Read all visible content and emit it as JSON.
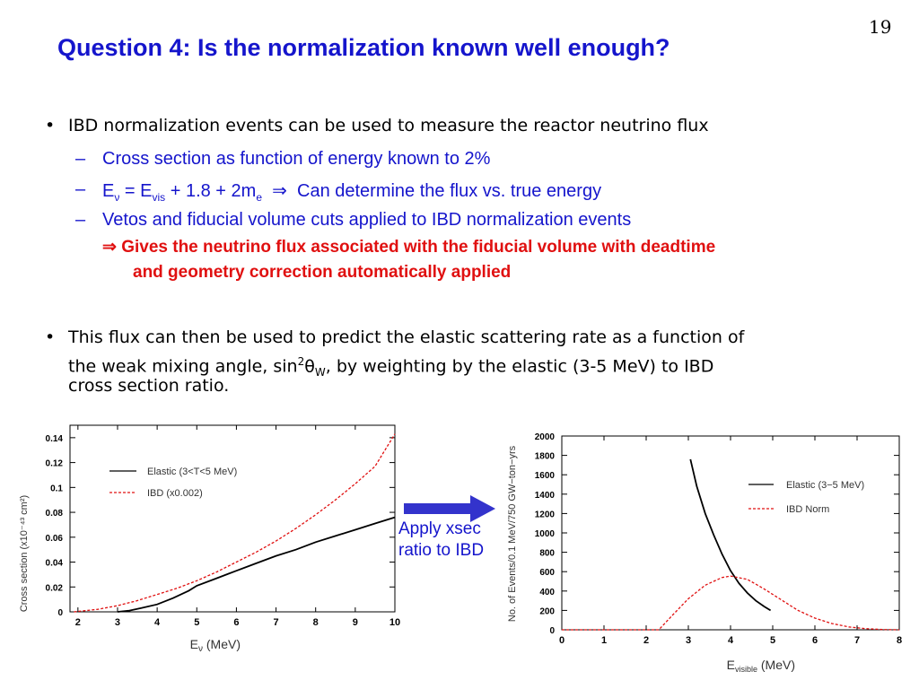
{
  "slide": {
    "number": "19",
    "title": "Question 4:  Is the normalization known well enough?"
  },
  "bullets": {
    "b1": {
      "bullet": "•",
      "text": "IBD normalization events can be used to measure the reactor neutrino flux",
      "subs": [
        {
          "dash": "–",
          "text": "Cross section as function of energy known to 2%"
        },
        {
          "dash": "–",
          "e": "E",
          "nu": "ν",
          "eq": " = E",
          "vis": "vis",
          "rest": " + 1.8 + 2m",
          "me": "e",
          "arrow": "  ⇒  ",
          "tail": "Can determine the flux vs. true energy"
        },
        {
          "dash": "–",
          "text": "Vetos and fiducial volume cuts applied to IBD normalization events"
        }
      ],
      "implication_arrow": "⇒",
      "implication_line1": " Gives the neutrino flux associated with the fiducial volume with deadtime",
      "implication_line2": "and geometry correction automatically applied"
    },
    "b2": {
      "bullet": "•",
      "line1": "This flux can then be used to predict the elastic scattering rate as a function of",
      "line2a": "the weak mixing angle, sin",
      "sup2": "2",
      "theta": "θ",
      "subW": "W",
      "line2b": ", by weighting by the elastic (3-5 MeV) to IBD",
      "line3": "cross section ratio."
    }
  },
  "arrow_note": {
    "line1": "Apply xsec",
    "line2": "ratio to IBD"
  },
  "colors": {
    "blue": "#1515cc",
    "red": "#e01010",
    "arrow": "#3333cc"
  },
  "chart_data": [
    {
      "type": "line",
      "ylabel": "Cross section (x10⁻⁴³ cm²)",
      "xlabel_main": "E",
      "xlabel_sub": "ν",
      "xlabel_unit": " (MeV)",
      "xlim": [
        1.8,
        10
      ],
      "ylim": [
        0,
        0.15
      ],
      "xticks": [
        "2",
        "3",
        "4",
        "5",
        "6",
        "7",
        "8",
        "9",
        "10"
      ],
      "yticks": [
        "0",
        "0.02",
        "0.04",
        "0.06",
        "0.08",
        "0.1",
        "0.12",
        "0.14"
      ],
      "series": [
        {
          "name": "Elastic (3<T<5 MeV)",
          "style": "solid",
          "color": "#000000",
          "x": [
            3.0,
            3.3,
            3.6,
            4.0,
            4.4,
            4.8,
            5.0,
            5.5,
            6,
            6.5,
            7,
            7.5,
            8,
            8.5,
            9,
            9.5,
            10
          ],
          "y": [
            0,
            0.001,
            0.003,
            0.006,
            0.011,
            0.017,
            0.021,
            0.027,
            0.033,
            0.039,
            0.045,
            0.05,
            0.056,
            0.061,
            0.066,
            0.071,
            0.076
          ]
        },
        {
          "name": "IBD (x0.002)",
          "style": "dashed",
          "color": "#e01010",
          "x": [
            1.9,
            2.5,
            3,
            3.5,
            4,
            4.5,
            5,
            5.5,
            6,
            6.5,
            7,
            7.5,
            8,
            8.5,
            9,
            9.5,
            10
          ],
          "y": [
            0,
            0.002,
            0.005,
            0.009,
            0.014,
            0.019,
            0.025,
            0.032,
            0.04,
            0.048,
            0.057,
            0.067,
            0.078,
            0.09,
            0.103,
            0.117,
            0.143
          ]
        }
      ]
    },
    {
      "type": "line",
      "ylabel": "No. of Events/0.1 MeV/750 GW−ton−yrs",
      "xlabel_main": "E",
      "xlabel_sub": "visible",
      "xlabel_unit": " (MeV)",
      "xlim": [
        0,
        8
      ],
      "ylim": [
        0,
        2000
      ],
      "xticks": [
        "0",
        "1",
        "2",
        "3",
        "4",
        "5",
        "6",
        "7",
        "8"
      ],
      "yticks": [
        "0",
        "200",
        "400",
        "600",
        "800",
        "1000",
        "1200",
        "1400",
        "1600",
        "1800",
        "2000"
      ],
      "series": [
        {
          "name": "Elastic (3−5 MeV)",
          "style": "solid",
          "color": "#000000",
          "x": [
            3.05,
            3.2,
            3.4,
            3.6,
            3.8,
            4.0,
            4.2,
            4.4,
            4.6,
            4.8,
            4.95
          ],
          "y": [
            1760,
            1480,
            1200,
            980,
            780,
            610,
            480,
            380,
            300,
            240,
            200
          ]
        },
        {
          "name": "IBD Norm",
          "style": "dashed",
          "color": "#e01010",
          "x": [
            0,
            1,
            2,
            2.3,
            2.6,
            3.0,
            3.4,
            3.8,
            4.0,
            4.4,
            4.8,
            5.2,
            5.6,
            6.0,
            6.4,
            6.8,
            7.2,
            7.6,
            8
          ],
          "y": [
            0,
            0,
            0,
            0,
            140,
            320,
            460,
            540,
            555,
            520,
            420,
            310,
            200,
            120,
            65,
            30,
            12,
            3,
            0
          ]
        }
      ]
    }
  ]
}
